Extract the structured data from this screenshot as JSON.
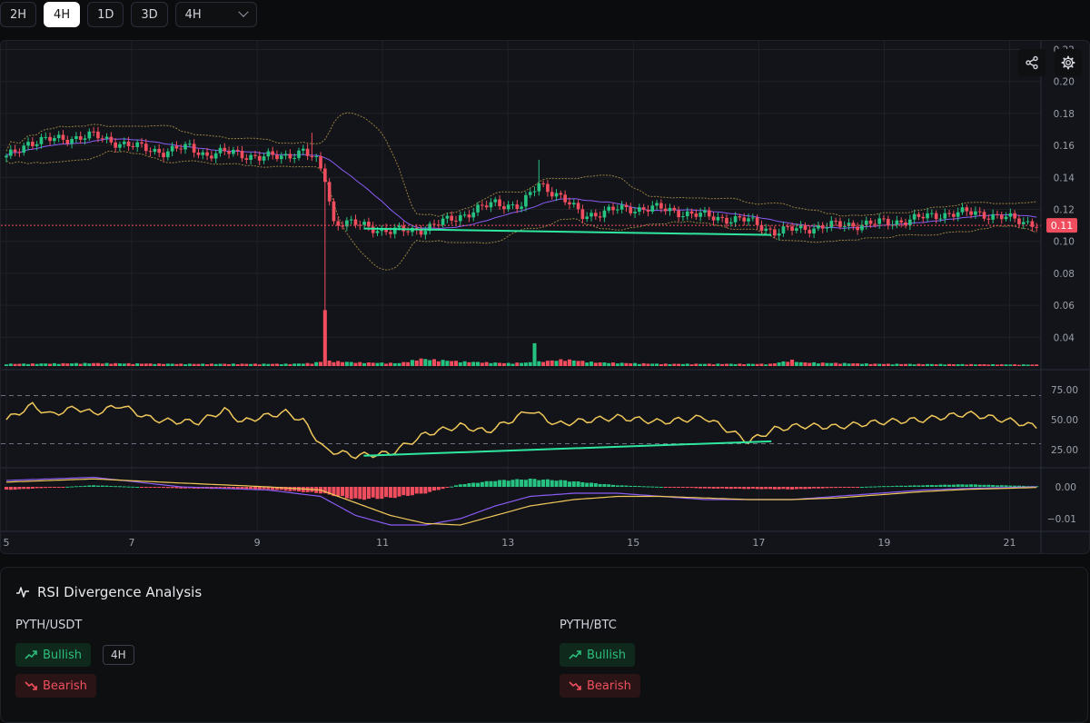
{
  "toolbar": {
    "buttons": [
      {
        "label": "2H",
        "active": false
      },
      {
        "label": "4H",
        "active": true
      },
      {
        "label": "1D",
        "active": false
      },
      {
        "label": "3D",
        "active": false
      }
    ],
    "select_value": "4H"
  },
  "chart_data": [
    {
      "type": "candlestick",
      "y_ticks": [
        "0.22",
        "0.20",
        "0.18",
        "0.16",
        "0.14",
        "0.12",
        "0.10",
        "0.08",
        "0.06",
        "0.04"
      ],
      "ylim": [
        0.022,
        0.222
      ],
      "x_ticks": [
        "5",
        "7",
        "9",
        "11",
        "13",
        "15",
        "17",
        "19",
        "21"
      ],
      "last_price_label": "0.11",
      "last_price": 0.11,
      "price_anchors": [
        [
          0,
          0.152
        ],
        [
          5,
          0.162
        ],
        [
          12,
          0.164
        ],
        [
          20,
          0.166
        ],
        [
          28,
          0.16
        ],
        [
          36,
          0.156
        ],
        [
          42,
          0.159
        ],
        [
          46,
          0.154
        ],
        [
          52,
          0.156
        ],
        [
          58,
          0.152
        ],
        [
          64,
          0.154
        ],
        [
          68,
          0.156
        ],
        [
          71,
          0.15
        ],
        [
          73,
          0.14
        ],
        [
          75,
          0.112
        ],
        [
          82,
          0.11
        ],
        [
          88,
          0.106
        ],
        [
          96,
          0.108
        ],
        [
          104,
          0.116
        ],
        [
          112,
          0.124
        ],
        [
          118,
          0.122
        ],
        [
          122,
          0.136
        ],
        [
          126,
          0.13
        ],
        [
          132,
          0.116
        ],
        [
          140,
          0.12
        ],
        [
          148,
          0.121
        ],
        [
          155,
          0.118
        ],
        [
          162,
          0.115
        ],
        [
          170,
          0.113
        ],
        [
          176,
          0.106
        ],
        [
          182,
          0.108
        ],
        [
          190,
          0.11
        ],
        [
          198,
          0.111
        ],
        [
          206,
          0.113
        ],
        [
          214,
          0.117
        ],
        [
          222,
          0.118
        ],
        [
          230,
          0.114
        ],
        [
          236,
          0.111
        ]
      ],
      "volume_anchors": [
        [
          0,
          0.3
        ],
        [
          10,
          0.35
        ],
        [
          20,
          0.4
        ],
        [
          40,
          0.3
        ],
        [
          65,
          0.3
        ],
        [
          70,
          0.4
        ],
        [
          72,
          0.6
        ],
        [
          73,
          8.0
        ],
        [
          74,
          0.7
        ],
        [
          80,
          0.5
        ],
        [
          90,
          0.4
        ],
        [
          95,
          1.0
        ],
        [
          97,
          0.9
        ],
        [
          105,
          0.6
        ],
        [
          110,
          0.5
        ],
        [
          115,
          0.4
        ],
        [
          120,
          0.5
        ],
        [
          121,
          3.8
        ],
        [
          122,
          0.6
        ],
        [
          128,
          0.9
        ],
        [
          135,
          0.5
        ],
        [
          150,
          0.3
        ],
        [
          160,
          0.3
        ],
        [
          175,
          0.3
        ],
        [
          180,
          0.8
        ],
        [
          182,
          0.5
        ],
        [
          200,
          0.3
        ],
        [
          236,
          0.2
        ]
      ],
      "divergence_line": {
        "x_start": "10.7",
        "x_end": "17.2",
        "y_start": 0.108,
        "y_end": 0.104
      }
    },
    {
      "type": "line",
      "name_hint": "RSI",
      "y_ticks": [
        "75.00",
        "50.00",
        "25.00"
      ],
      "levels": [
        70,
        30
      ],
      "ylim": [
        10,
        90
      ],
      "rsi_anchors": [
        [
          0,
          50
        ],
        [
          6,
          62
        ],
        [
          10,
          54
        ],
        [
          16,
          60
        ],
        [
          20,
          55
        ],
        [
          26,
          62
        ],
        [
          32,
          52
        ],
        [
          36,
          49
        ],
        [
          44,
          48
        ],
        [
          50,
          58
        ],
        [
          54,
          48
        ],
        [
          58,
          52
        ],
        [
          64,
          56
        ],
        [
          68,
          49
        ],
        [
          73,
          25
        ],
        [
          80,
          20
        ],
        [
          88,
          22
        ],
        [
          96,
          38
        ],
        [
          104,
          45
        ],
        [
          110,
          40
        ],
        [
          116,
          50
        ],
        [
          120,
          58
        ],
        [
          126,
          46
        ],
        [
          132,
          49
        ],
        [
          140,
          52
        ],
        [
          150,
          48
        ],
        [
          160,
          52
        ],
        [
          170,
          32
        ],
        [
          176,
          42
        ],
        [
          182,
          45
        ],
        [
          190,
          44
        ],
        [
          200,
          48
        ],
        [
          210,
          50
        ],
        [
          220,
          55
        ],
        [
          230,
          49
        ],
        [
          236,
          44
        ]
      ]
    },
    {
      "type": "bar",
      "name_hint": "MACD",
      "y_ticks": [
        "0.00",
        "−0.01"
      ],
      "ylim": [
        -0.014,
        0.006
      ],
      "hist_anchors": [
        [
          0,
          -0.001
        ],
        [
          20,
          0.0005
        ],
        [
          40,
          -0.0005
        ],
        [
          60,
          -0.0008
        ],
        [
          72,
          -0.002
        ],
        [
          80,
          -0.004
        ],
        [
          88,
          -0.0035
        ],
        [
          96,
          -0.002
        ],
        [
          104,
          0.0008
        ],
        [
          112,
          0.002
        ],
        [
          120,
          0.0025
        ],
        [
          128,
          0.002
        ],
        [
          140,
          0.0005
        ],
        [
          160,
          -0.0005
        ],
        [
          180,
          -0.0008
        ],
        [
          200,
          0.0002
        ],
        [
          220,
          0.0008
        ],
        [
          236,
          0.0002
        ]
      ],
      "macd_anchors": [
        [
          0,
          0.002
        ],
        [
          20,
          0.003
        ],
        [
          40,
          0.0
        ],
        [
          60,
          -0.001
        ],
        [
          72,
          -0.003
        ],
        [
          80,
          -0.009
        ],
        [
          88,
          -0.012
        ],
        [
          96,
          -0.012
        ],
        [
          104,
          -0.01
        ],
        [
          112,
          -0.006
        ],
        [
          120,
          -0.003
        ],
        [
          130,
          -0.002
        ],
        [
          140,
          -0.002
        ],
        [
          150,
          -0.003
        ],
        [
          160,
          -0.004
        ],
        [
          170,
          -0.004
        ],
        [
          180,
          -0.004
        ],
        [
          190,
          -0.003
        ],
        [
          200,
          -0.002
        ],
        [
          210,
          -0.001
        ],
        [
          220,
          -0.0005
        ],
        [
          236,
          0.0
        ]
      ],
      "signal_anchors": [
        [
          0,
          0.0015
        ],
        [
          20,
          0.0025
        ],
        [
          40,
          0.0012
        ],
        [
          60,
          0.0
        ],
        [
          72,
          -0.001
        ],
        [
          80,
          -0.005
        ],
        [
          88,
          -0.009
        ],
        [
          96,
          -0.0115
        ],
        [
          104,
          -0.012
        ],
        [
          112,
          -0.009
        ],
        [
          120,
          -0.006
        ],
        [
          130,
          -0.004
        ],
        [
          140,
          -0.003
        ],
        [
          150,
          -0.003
        ],
        [
          160,
          -0.0035
        ],
        [
          170,
          -0.004
        ],
        [
          180,
          -0.004
        ],
        [
          190,
          -0.0035
        ],
        [
          200,
          -0.0025
        ],
        [
          210,
          -0.0015
        ],
        [
          220,
          -0.0008
        ],
        [
          236,
          -0.0002
        ]
      ]
    }
  ],
  "colors": {
    "up": "#26c281",
    "down": "#f04d5e",
    "bb_band": "#b89a4a",
    "bb_mid": "#8a5cf5",
    "rsi": "#f0c85a",
    "macd": "#8a5cf5",
    "signal": "#f0c85a",
    "divergence": "#2ee6a0"
  },
  "panel": {
    "title": "RSI Divergence Analysis",
    "left": {
      "pair": "PYTH/USDT",
      "bullish": "Bullish",
      "bearish": "Bearish",
      "timeframe": "4H"
    },
    "right": {
      "pair": "PYTH/BTC",
      "bullish": "Bullish",
      "bearish": "Bearish"
    }
  }
}
